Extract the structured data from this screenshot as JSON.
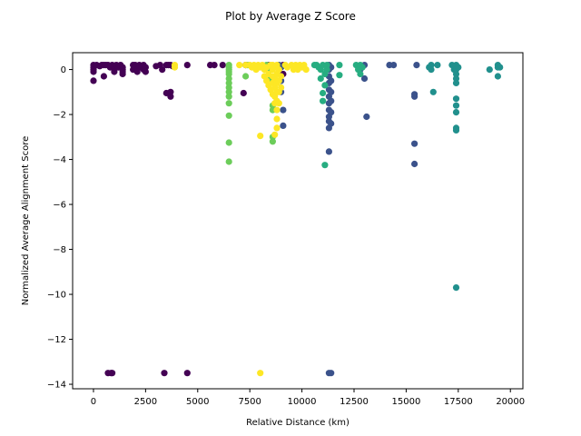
{
  "chart_data": {
    "type": "scatter",
    "title": "Plot by Average Z Score",
    "xlabel": "Relative Distance (km)",
    "ylabel": "Normalized Average Alignment Score",
    "xlim": [
      -1000,
      20600
    ],
    "ylim": [
      -14.2,
      0.75
    ],
    "xticks": [
      0,
      2500,
      5000,
      7500,
      10000,
      12500,
      15000,
      17500,
      20000
    ],
    "xtick_labels": [
      "0",
      "2500",
      "5000",
      "7500",
      "10000",
      "12500",
      "15000",
      "17500",
      "20000"
    ],
    "yticks": [
      0,
      -2,
      -4,
      -6,
      -8,
      -10,
      -12,
      -14
    ],
    "ytick_labels": [
      "0",
      "−2",
      "−4",
      "−6",
      "−8",
      "−10",
      "−12",
      "−14"
    ],
    "grid": false,
    "legend": "none",
    "series": [
      {
        "color": "#440154",
        "points": [
          [
            0,
            0.2
          ],
          [
            0,
            0.1
          ],
          [
            0,
            0.0
          ],
          [
            0,
            -0.1
          ],
          [
            0,
            -0.5
          ],
          [
            150,
            0.2
          ],
          [
            300,
            0.15
          ],
          [
            400,
            0.2
          ],
          [
            500,
            0.2
          ],
          [
            500,
            -0.3
          ],
          [
            600,
            0.2
          ],
          [
            700,
            0.2
          ],
          [
            800,
            0.1
          ],
          [
            900,
            0.2
          ],
          [
            1000,
            0.0
          ],
          [
            1000,
            -0.1
          ],
          [
            1100,
            0.2
          ],
          [
            1200,
            0.1
          ],
          [
            1300,
            0.2
          ],
          [
            1400,
            0.1
          ],
          [
            1400,
            0.0
          ],
          [
            1400,
            -0.1
          ],
          [
            1400,
            -0.2
          ],
          [
            1900,
            0.2
          ],
          [
            1900,
            0.0
          ],
          [
            2000,
            0.2
          ],
          [
            2000,
            0.1
          ],
          [
            2100,
            0.0
          ],
          [
            2100,
            -0.1
          ],
          [
            2200,
            0.2
          ],
          [
            2300,
            0.1
          ],
          [
            2400,
            0.2
          ],
          [
            2400,
            0.0
          ],
          [
            2500,
            0.1
          ],
          [
            2500,
            -0.1
          ],
          [
            3000,
            0.15
          ],
          [
            3200,
            0.2
          ],
          [
            3300,
            0.0
          ],
          [
            3500,
            0.2
          ],
          [
            3500,
            -1.05
          ],
          [
            3600,
            0.2
          ],
          [
            3700,
            0.2
          ],
          [
            3700,
            -1.0
          ],
          [
            3700,
            -1.2
          ],
          [
            3800,
            0.15
          ],
          [
            4500,
            0.2
          ],
          [
            5600,
            0.2
          ],
          [
            5800,
            0.2
          ],
          [
            6200,
            0.2
          ],
          [
            7200,
            -1.05
          ],
          [
            7300,
            0.2
          ],
          [
            8400,
            0.2
          ],
          [
            9100,
            0.2
          ],
          [
            9100,
            -0.2
          ],
          [
            700,
            -13.5
          ],
          [
            850,
            -13.5
          ],
          [
            900,
            -13.5
          ],
          [
            3400,
            -13.5
          ],
          [
            4500,
            -13.5
          ]
        ]
      },
      {
        "color": "#3b528b",
        "points": [
          [
            8900,
            0.2
          ],
          [
            9000,
            0.1
          ],
          [
            9000,
            -0.5
          ],
          [
            9000,
            -1.0
          ],
          [
            9100,
            -1.8
          ],
          [
            9100,
            -2.5
          ],
          [
            11300,
            0.2
          ],
          [
            11300,
            0.0
          ],
          [
            11300,
            -0.3
          ],
          [
            11300,
            -0.6
          ],
          [
            11300,
            -0.9
          ],
          [
            11300,
            -1.2
          ],
          [
            11300,
            -1.5
          ],
          [
            11300,
            -1.8
          ],
          [
            11300,
            -2.1
          ],
          [
            11300,
            -2.3
          ],
          [
            11300,
            -2.6
          ],
          [
            11300,
            -3.65
          ],
          [
            11400,
            0.1
          ],
          [
            11400,
            -0.5
          ],
          [
            11400,
            -1.0
          ],
          [
            11400,
            -1.4
          ],
          [
            11400,
            -1.9
          ],
          [
            11400,
            -2.4
          ],
          [
            11300,
            -13.5
          ],
          [
            11400,
            -13.5
          ],
          [
            12800,
            0.0
          ],
          [
            13000,
            0.2
          ],
          [
            13000,
            -0.4
          ],
          [
            13100,
            -2.1
          ],
          [
            14200,
            0.2
          ],
          [
            14400,
            0.2
          ],
          [
            15400,
            -1.1
          ],
          [
            15400,
            -1.2
          ],
          [
            15400,
            -3.3
          ],
          [
            15400,
            -4.2
          ],
          [
            15500,
            0.2
          ]
        ]
      },
      {
        "color": "#21908d",
        "points": [
          [
            16100,
            0.1
          ],
          [
            16200,
            0.2
          ],
          [
            16200,
            0.0
          ],
          [
            16300,
            -1.0
          ],
          [
            16500,
            0.2
          ],
          [
            17200,
            0.2
          ],
          [
            17300,
            0.1
          ],
          [
            17300,
            0.0
          ],
          [
            17400,
            0.2
          ],
          [
            17400,
            0.0
          ],
          [
            17400,
            -0.2
          ],
          [
            17400,
            -0.4
          ],
          [
            17400,
            -0.6
          ],
          [
            17400,
            -1.3
          ],
          [
            17400,
            -1.6
          ],
          [
            17400,
            -1.9
          ],
          [
            17400,
            -2.6
          ],
          [
            17400,
            -2.7
          ],
          [
            17400,
            -9.7
          ],
          [
            17500,
            0.1
          ],
          [
            19000,
            0.0
          ],
          [
            19400,
            0.2
          ],
          [
            19400,
            0.1
          ],
          [
            19500,
            0.1
          ],
          [
            19400,
            -0.3
          ]
        ]
      },
      {
        "color": "#27ad81",
        "points": [
          [
            10600,
            0.2
          ],
          [
            10700,
            0.2
          ],
          [
            10800,
            0.1
          ],
          [
            10900,
            0.0
          ],
          [
            10900,
            -0.4
          ],
          [
            11000,
            0.2
          ],
          [
            11000,
            -1.05
          ],
          [
            11000,
            -1.4
          ],
          [
            11100,
            -0.2
          ],
          [
            11100,
            -0.7
          ],
          [
            11100,
            -4.25
          ],
          [
            11200,
            0.2
          ],
          [
            11200,
            0.0
          ],
          [
            11800,
            0.2
          ],
          [
            11800,
            -0.25
          ],
          [
            12600,
            0.2
          ],
          [
            12700,
            0.1
          ],
          [
            12700,
            0.0
          ],
          [
            12800,
            0.2
          ],
          [
            12800,
            -0.2
          ],
          [
            12900,
            0.1
          ]
        ]
      },
      {
        "color": "#6ccd5a",
        "points": [
          [
            6500,
            0.2
          ],
          [
            6500,
            0.1
          ],
          [
            6500,
            0.0
          ],
          [
            6500,
            -0.1
          ],
          [
            6500,
            -0.2
          ],
          [
            6500,
            -0.4
          ],
          [
            6500,
            -0.6
          ],
          [
            6500,
            -0.8
          ],
          [
            6500,
            -1.0
          ],
          [
            6500,
            -1.2
          ],
          [
            6500,
            -1.5
          ],
          [
            6500,
            -2.05
          ],
          [
            6500,
            -3.25
          ],
          [
            6500,
            -4.1
          ],
          [
            7300,
            -0.3
          ],
          [
            7400,
            0.2
          ],
          [
            8300,
            0.2
          ],
          [
            8400,
            0.1
          ],
          [
            8500,
            0.0
          ],
          [
            8500,
            -0.4
          ],
          [
            8600,
            -1.6
          ],
          [
            8600,
            -1.8
          ],
          [
            8600,
            -3.0
          ],
          [
            8600,
            -3.2
          ]
        ]
      },
      {
        "color": "#fde725",
        "points": [
          [
            3900,
            0.2
          ],
          [
            3900,
            0.1
          ],
          [
            7000,
            0.2
          ],
          [
            7300,
            0.2
          ],
          [
            7500,
            0.2
          ],
          [
            7600,
            0.1
          ],
          [
            7700,
            0.2
          ],
          [
            7800,
            0.0
          ],
          [
            7900,
            0.2
          ],
          [
            8000,
            0.1
          ],
          [
            8000,
            -2.95
          ],
          [
            8100,
            0.2
          ],
          [
            8200,
            0.0
          ],
          [
            8200,
            -0.3
          ],
          [
            8300,
            0.1
          ],
          [
            8300,
            -0.5
          ],
          [
            8400,
            -0.2
          ],
          [
            8400,
            -0.7
          ],
          [
            8500,
            0.2
          ],
          [
            8500,
            -0.9
          ],
          [
            8600,
            0.2
          ],
          [
            8600,
            0.0
          ],
          [
            8600,
            -0.3
          ],
          [
            8600,
            -0.6
          ],
          [
            8600,
            -1.1
          ],
          [
            8700,
            0.1
          ],
          [
            8700,
            -0.4
          ],
          [
            8700,
            -0.8
          ],
          [
            8700,
            -1.2
          ],
          [
            8700,
            -1.5
          ],
          [
            8700,
            -2.9
          ],
          [
            8800,
            0.2
          ],
          [
            8800,
            -0.2
          ],
          [
            8800,
            -0.6
          ],
          [
            8800,
            -1.0
          ],
          [
            8800,
            -1.4
          ],
          [
            8800,
            -1.8
          ],
          [
            8800,
            -2.2
          ],
          [
            8800,
            -2.6
          ],
          [
            8900,
            0.0
          ],
          [
            8900,
            -0.5
          ],
          [
            8900,
            -1.0
          ],
          [
            8900,
            -1.5
          ],
          [
            9000,
            -0.3
          ],
          [
            9000,
            -0.8
          ],
          [
            9200,
            0.2
          ],
          [
            9300,
            0.1
          ],
          [
            9500,
            0.2
          ],
          [
            9600,
            0.0
          ],
          [
            9700,
            0.2
          ],
          [
            9800,
            0.0
          ],
          [
            9900,
            0.2
          ],
          [
            10000,
            0.1
          ],
          [
            10100,
            0.2
          ],
          [
            10200,
            0.0
          ],
          [
            8000,
            -13.5
          ]
        ]
      }
    ]
  }
}
